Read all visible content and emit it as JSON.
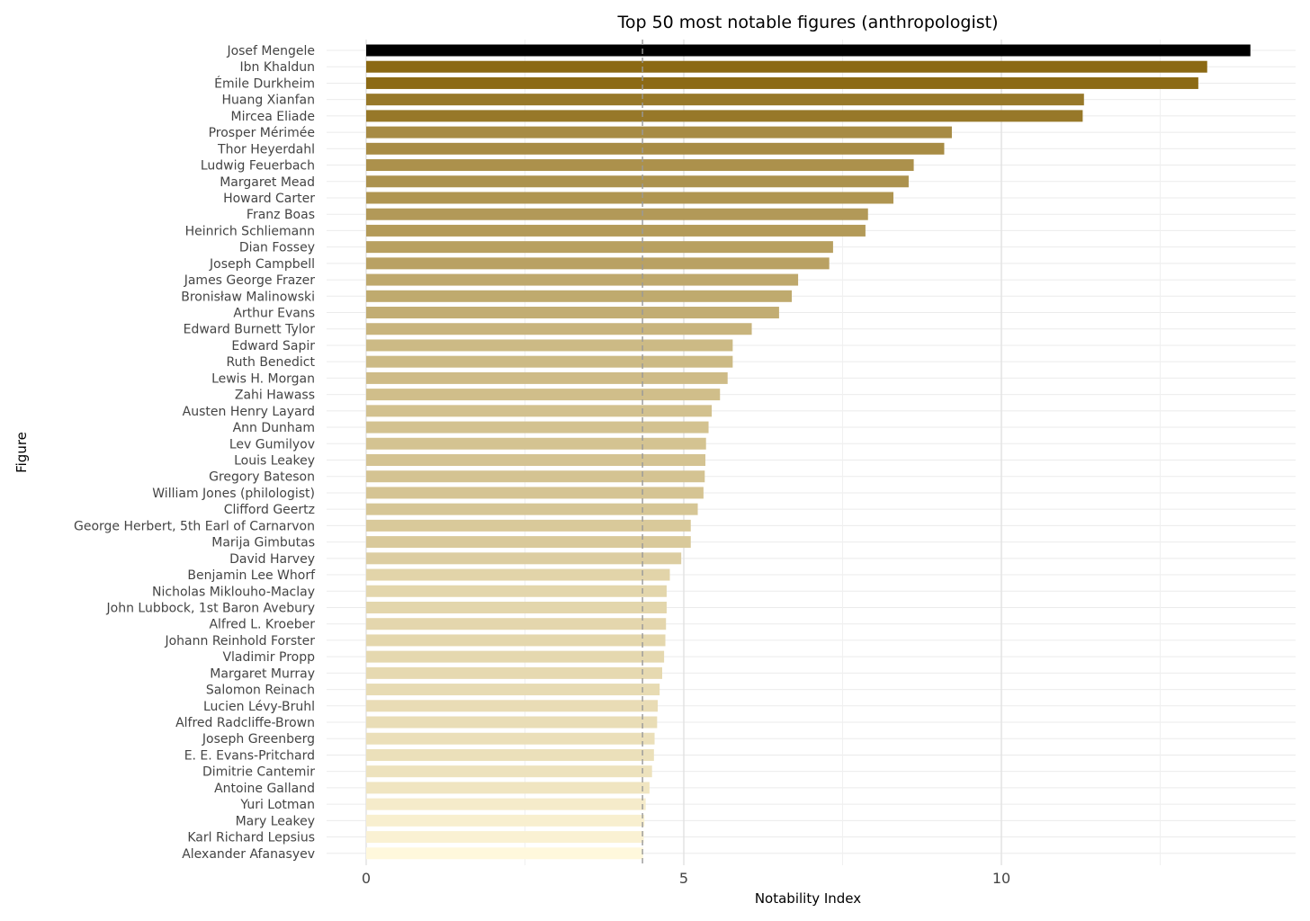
{
  "chart_data": {
    "type": "bar",
    "orientation": "horizontal",
    "title": "Top 50 most notable figures (anthropologist)",
    "xlabel": "Notability Index",
    "ylabel": "Figure",
    "xlim": [
      0,
      14.5
    ],
    "xticks": [
      0,
      5,
      10
    ],
    "grid": true,
    "reference_line": 4.35,
    "categories": [
      "Josef Mengele",
      "Ibn Khaldun",
      "Émile Durkheim",
      "Huang Xianfan",
      "Mircea Eliade",
      "Prosper Mérimée",
      "Thor Heyerdahl",
      "Ludwig Feuerbach",
      "Margaret Mead",
      "Howard Carter",
      "Franz Boas",
      "Heinrich Schliemann",
      "Dian Fossey",
      "Joseph Campbell",
      "James George Frazer",
      "Bronisław Malinowski",
      "Arthur Evans",
      "Edward Burnett Tylor",
      "Edward Sapir",
      "Ruth Benedict",
      "Lewis H. Morgan",
      "Zahi Hawass",
      "Austen Henry Layard",
      "Ann Dunham",
      "Lev Gumilyov",
      "Louis Leakey",
      "Gregory Bateson",
      "William Jones (philologist)",
      "Clifford Geertz",
      "George Herbert, 5th Earl of Carnarvon",
      "Marija Gimbutas",
      "David Harvey",
      "Benjamin Lee Whorf",
      "Nicholas Miklouho-Maclay",
      "John Lubbock, 1st Baron Avebury",
      "Alfred L. Kroeber",
      "Johann Reinhold Forster",
      "Vladimir Propp",
      "Margaret Murray",
      "Salomon Reinach",
      "Lucien Lévy-Bruhl",
      "Alfred Radcliffe-Brown",
      "Joseph Greenberg",
      "E. E. Evans-Pritchard",
      "Dimitrie Cantemir",
      "Antoine Galland",
      "Yuri Lotman",
      "Mary Leakey",
      "Karl Richard Lepsius",
      "Alexander Afanasyev"
    ],
    "values": [
      13.92,
      13.24,
      13.1,
      11.3,
      11.28,
      9.22,
      9.1,
      8.62,
      8.54,
      8.3,
      7.9,
      7.86,
      7.35,
      7.29,
      6.8,
      6.7,
      6.5,
      6.07,
      5.77,
      5.77,
      5.69,
      5.57,
      5.44,
      5.39,
      5.35,
      5.34,
      5.33,
      5.31,
      5.22,
      5.11,
      5.11,
      4.96,
      4.78,
      4.73,
      4.73,
      4.72,
      4.71,
      4.69,
      4.66,
      4.62,
      4.59,
      4.58,
      4.54,
      4.53,
      4.5,
      4.46,
      4.4,
      4.38,
      4.37,
      4.36
    ],
    "colors": {
      "max": "#000000",
      "high": "#8b6914",
      "low": "#fff8dc"
    }
  }
}
